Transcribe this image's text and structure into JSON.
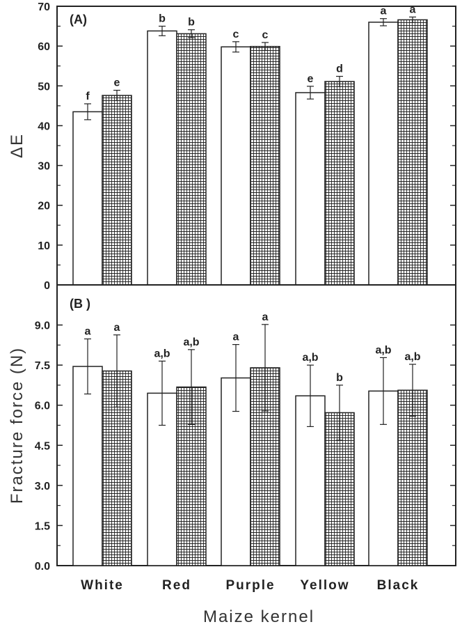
{
  "chart_data": [
    {
      "type": "bar",
      "panel_label": "(A)",
      "categories": [
        "White",
        "Red",
        "Purple",
        "Yellow",
        "Black"
      ],
      "ylabel": "ΔE",
      "xlabel": "",
      "ylim": [
        0,
        70
      ],
      "yticks": [
        0,
        10,
        20,
        30,
        40,
        50,
        60,
        70
      ],
      "ytick_labels": [
        "0",
        "10",
        "20",
        "30",
        "40",
        "50",
        "60",
        "70"
      ],
      "series": [
        {
          "name": "open bars",
          "fill": "plain",
          "values": [
            43.5,
            63.8,
            59.8,
            48.3,
            66.0
          ],
          "errors": [
            2.0,
            1.2,
            1.3,
            1.6,
            0.9
          ],
          "sig": [
            "f",
            "b",
            "c",
            "e",
            "a"
          ]
        },
        {
          "name": "hatched bars",
          "fill": "grid",
          "values": [
            47.6,
            63.1,
            59.9,
            51.1,
            66.6
          ],
          "errors": [
            1.3,
            1.0,
            1.0,
            1.3,
            0.7
          ],
          "sig": [
            "e",
            "b",
            "c",
            "d",
            "a"
          ]
        }
      ]
    },
    {
      "type": "bar",
      "panel_label": "(B )",
      "categories": [
        "White",
        "Red",
        "Purple",
        "Yellow",
        "Black"
      ],
      "ylabel": "Fracture force (N)",
      "xlabel": "Maize kernel",
      "ylim": [
        0,
        10.5
      ],
      "yticks": [
        0,
        1.5,
        3,
        4.5,
        6,
        7.5,
        9
      ],
      "ytick_labels": [
        "0.0",
        "1.5",
        "3.0",
        "4.5",
        "6.0",
        "7.5",
        "9.0"
      ],
      "series": [
        {
          "name": "open bars",
          "fill": "plain",
          "values": [
            7.45,
            6.45,
            7.02,
            6.35,
            6.53
          ],
          "errors": [
            1.03,
            1.2,
            1.25,
            1.15,
            1.25
          ],
          "sig": [
            "a",
            "a,b",
            "a",
            "a,b",
            "a,b"
          ]
        },
        {
          "name": "hatched bars",
          "fill": "grid",
          "values": [
            7.28,
            6.68,
            7.4,
            5.72,
            6.56
          ],
          "errors": [
            1.35,
            1.4,
            1.62,
            1.03,
            0.97
          ],
          "sig": [
            "a",
            "a,b",
            "a",
            "b",
            "a,b"
          ]
        }
      ]
    }
  ]
}
